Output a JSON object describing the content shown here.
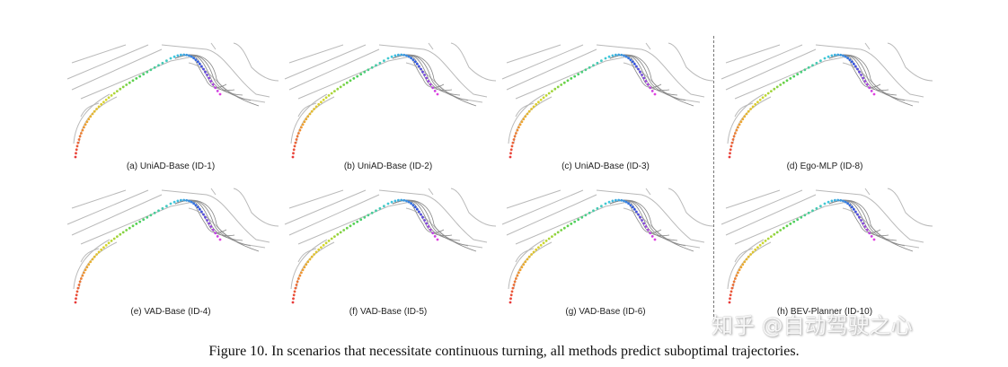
{
  "panels": [
    {
      "label": "(a) UniAD-Base (ID-1)"
    },
    {
      "label": "(b) UniAD-Base (ID-2)"
    },
    {
      "label": "(c) UniAD-Base (ID-3)"
    },
    {
      "label": "(d) Ego-MLP (ID-8)"
    },
    {
      "label": "(e) VAD-Base (ID-4)"
    },
    {
      "label": "(f) VAD-Base (ID-5)"
    },
    {
      "label": "(g) VAD-Base (ID-6)"
    },
    {
      "label": "(h) BEV-Planner (ID-10)"
    }
  ],
  "caption": "Figure 10. In scenarios that necessitate continuous turning, all methods predict suboptimal trajectories.",
  "watermark": "知乎 @自动驾驶之心",
  "colors": {
    "trajectory_gradient": [
      "#e83a3a",
      "#f0a030",
      "#d8d830",
      "#50d050",
      "#40c8e0",
      "#3050e0",
      "#e040e0"
    ],
    "road_lines": "#b9b9b9",
    "divider": "#777777"
  }
}
